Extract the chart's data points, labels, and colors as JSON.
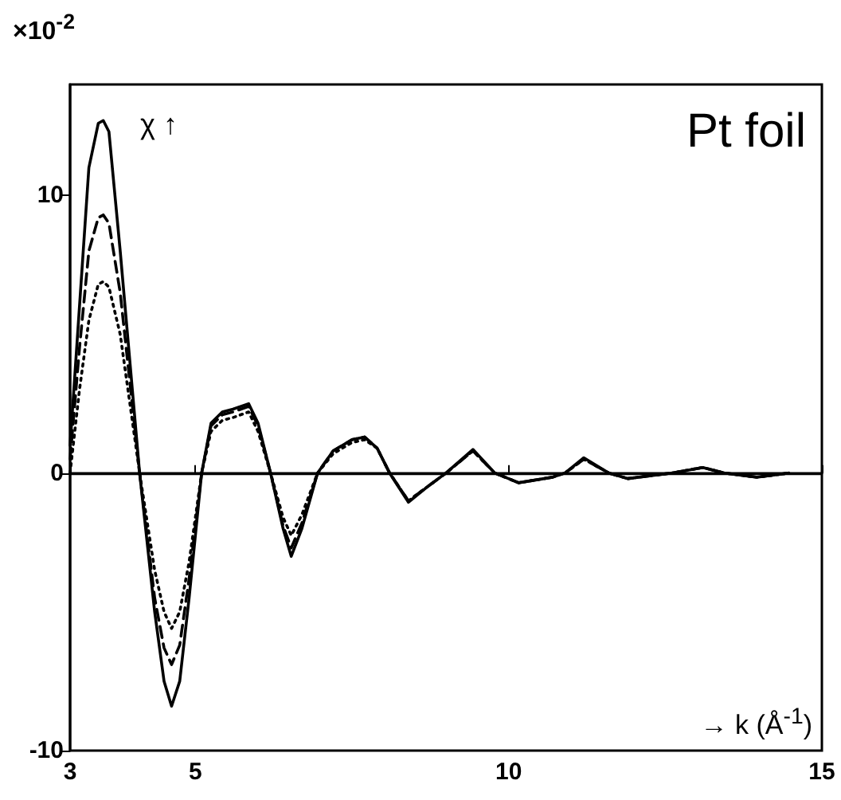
{
  "chart_data": {
    "type": "line",
    "xlabel": "→ k (Å$^{-1}$)",
    "ylabel": "χ ↑",
    "annotations": [
      "×10$^{-2}$",
      "Pt foil"
    ],
    "x": [
      3,
      3.15,
      3.3,
      3.45,
      3.53,
      3.62,
      3.8,
      4.11,
      4.35,
      4.5,
      4.62,
      4.75,
      4.9,
      5.1,
      5.25,
      5.43,
      5.6,
      5.85,
      6.0,
      6.2,
      6.4,
      6.53,
      6.7,
      6.95,
      7.2,
      7.5,
      7.7,
      7.9,
      8.1,
      8.4,
      8.7,
      9.0,
      9.43,
      9.78,
      10.16,
      10.7,
      10.9,
      11.2,
      11.6,
      11.9,
      12.6,
      13.1,
      13.45,
      13.96,
      14.47
    ],
    "series": [
      {
        "color": "#000000",
        "line_style": "solid",
        "values": [
          1,
          6,
          11,
          12.6,
          12.7,
          12.3,
          8,
          0,
          -5,
          -7.5,
          -8.4,
          -7.5,
          -4.5,
          0,
          1.8,
          2.2,
          2.3,
          2.5,
          1.8,
          0,
          -2,
          -3,
          -2,
          0,
          0.8,
          1.2,
          1.3,
          0.9,
          0,
          -1.05,
          -0.5,
          0,
          0.85,
          0,
          -0.35,
          -0.15,
          0,
          0.55,
          0,
          -0.2,
          0,
          0.2,
          0,
          -0.15,
          0
        ]
      },
      {
        "color": "#000000",
        "line_style": "dashed",
        "values": [
          0.5,
          4.5,
          8,
          9.2,
          9.3,
          9,
          6.5,
          0,
          -4.5,
          -6.3,
          -6.9,
          -6.2,
          -3.8,
          0,
          1.7,
          2.1,
          2.2,
          2.4,
          1.7,
          0,
          -1.9,
          -2.7,
          -1.8,
          0,
          0.8,
          1.2,
          1.3,
          0.9,
          0,
          -1,
          -0.5,
          0,
          0.8,
          0,
          -0.35,
          -0.15,
          0,
          0.5,
          0,
          -0.2,
          0,
          0.2,
          0,
          -0.15,
          0
        ]
      },
      {
        "color": "#000000",
        "line_style": "dotted",
        "values": [
          0,
          3,
          5.5,
          6.8,
          6.9,
          6.7,
          5,
          0,
          -3.5,
          -5,
          -5.6,
          -5,
          -3.2,
          0,
          1.5,
          1.9,
          2,
          2.2,
          1.5,
          0,
          -1.6,
          -2.25,
          -1.5,
          0,
          0.7,
          1.1,
          1.2,
          0.9,
          0,
          -1,
          -0.5,
          0,
          0.8,
          0,
          -0.35,
          -0.15,
          0,
          0.5,
          0,
          -0.2,
          0,
          0.2,
          0,
          -0.15,
          0
        ]
      }
    ],
    "xlim": [
      3,
      15
    ],
    "xticks": [
      3,
      5,
      10,
      15
    ],
    "ylim": [
      -10,
      14
    ],
    "yticks": [
      -10,
      0,
      10
    ],
    "ref_lines": [
      {
        "axis": "y",
        "value": 0,
        "color": "#000000"
      }
    ],
    "grid": false,
    "marker": "none"
  }
}
